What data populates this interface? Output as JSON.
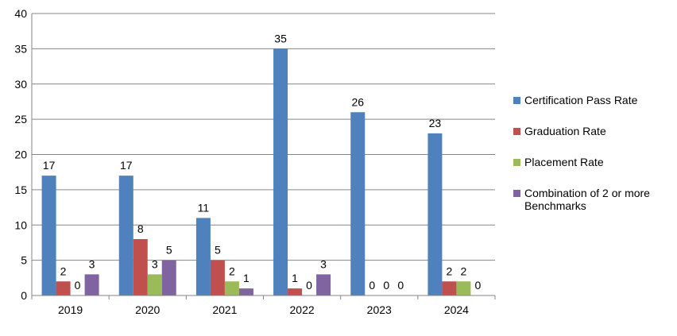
{
  "chart_data": {
    "type": "bar",
    "title": "",
    "xlabel": "",
    "ylabel": "",
    "categories": [
      "2019",
      "2020",
      "2021",
      "2022",
      "2023",
      "2024"
    ],
    "series": [
      {
        "name": "Certification Pass Rate",
        "color": "#4F81BD",
        "values": [
          17,
          17,
          11,
          35,
          26,
          23
        ]
      },
      {
        "name": "Graduation Rate",
        "color": "#C0504D",
        "values": [
          2,
          8,
          5,
          1,
          0,
          2
        ]
      },
      {
        "name": "Placement Rate",
        "color": "#9BBB59",
        "values": [
          0,
          3,
          2,
          0,
          0,
          2
        ]
      },
      {
        "name": "Combination of 2 or more Benchmarks",
        "color": "#8064A2",
        "values": [
          3,
          5,
          1,
          3,
          0,
          0
        ]
      }
    ],
    "data_labels": [
      [
        "17",
        "17",
        "11",
        "35",
        "26",
        "23"
      ],
      [
        "2",
        "8",
        "5",
        "1",
        "0",
        "2"
      ],
      [
        "0",
        "3",
        "2",
        "0",
        "0",
        "2"
      ],
      [
        "3",
        "5",
        "1",
        "3",
        "0",
        "0"
      ]
    ],
    "ylim": [
      0,
      40
    ],
    "yticks": [
      "0",
      "5",
      "10",
      "15",
      "20",
      "25",
      "30",
      "35",
      "40"
    ],
    "grid": true,
    "legend_position": "right"
  }
}
